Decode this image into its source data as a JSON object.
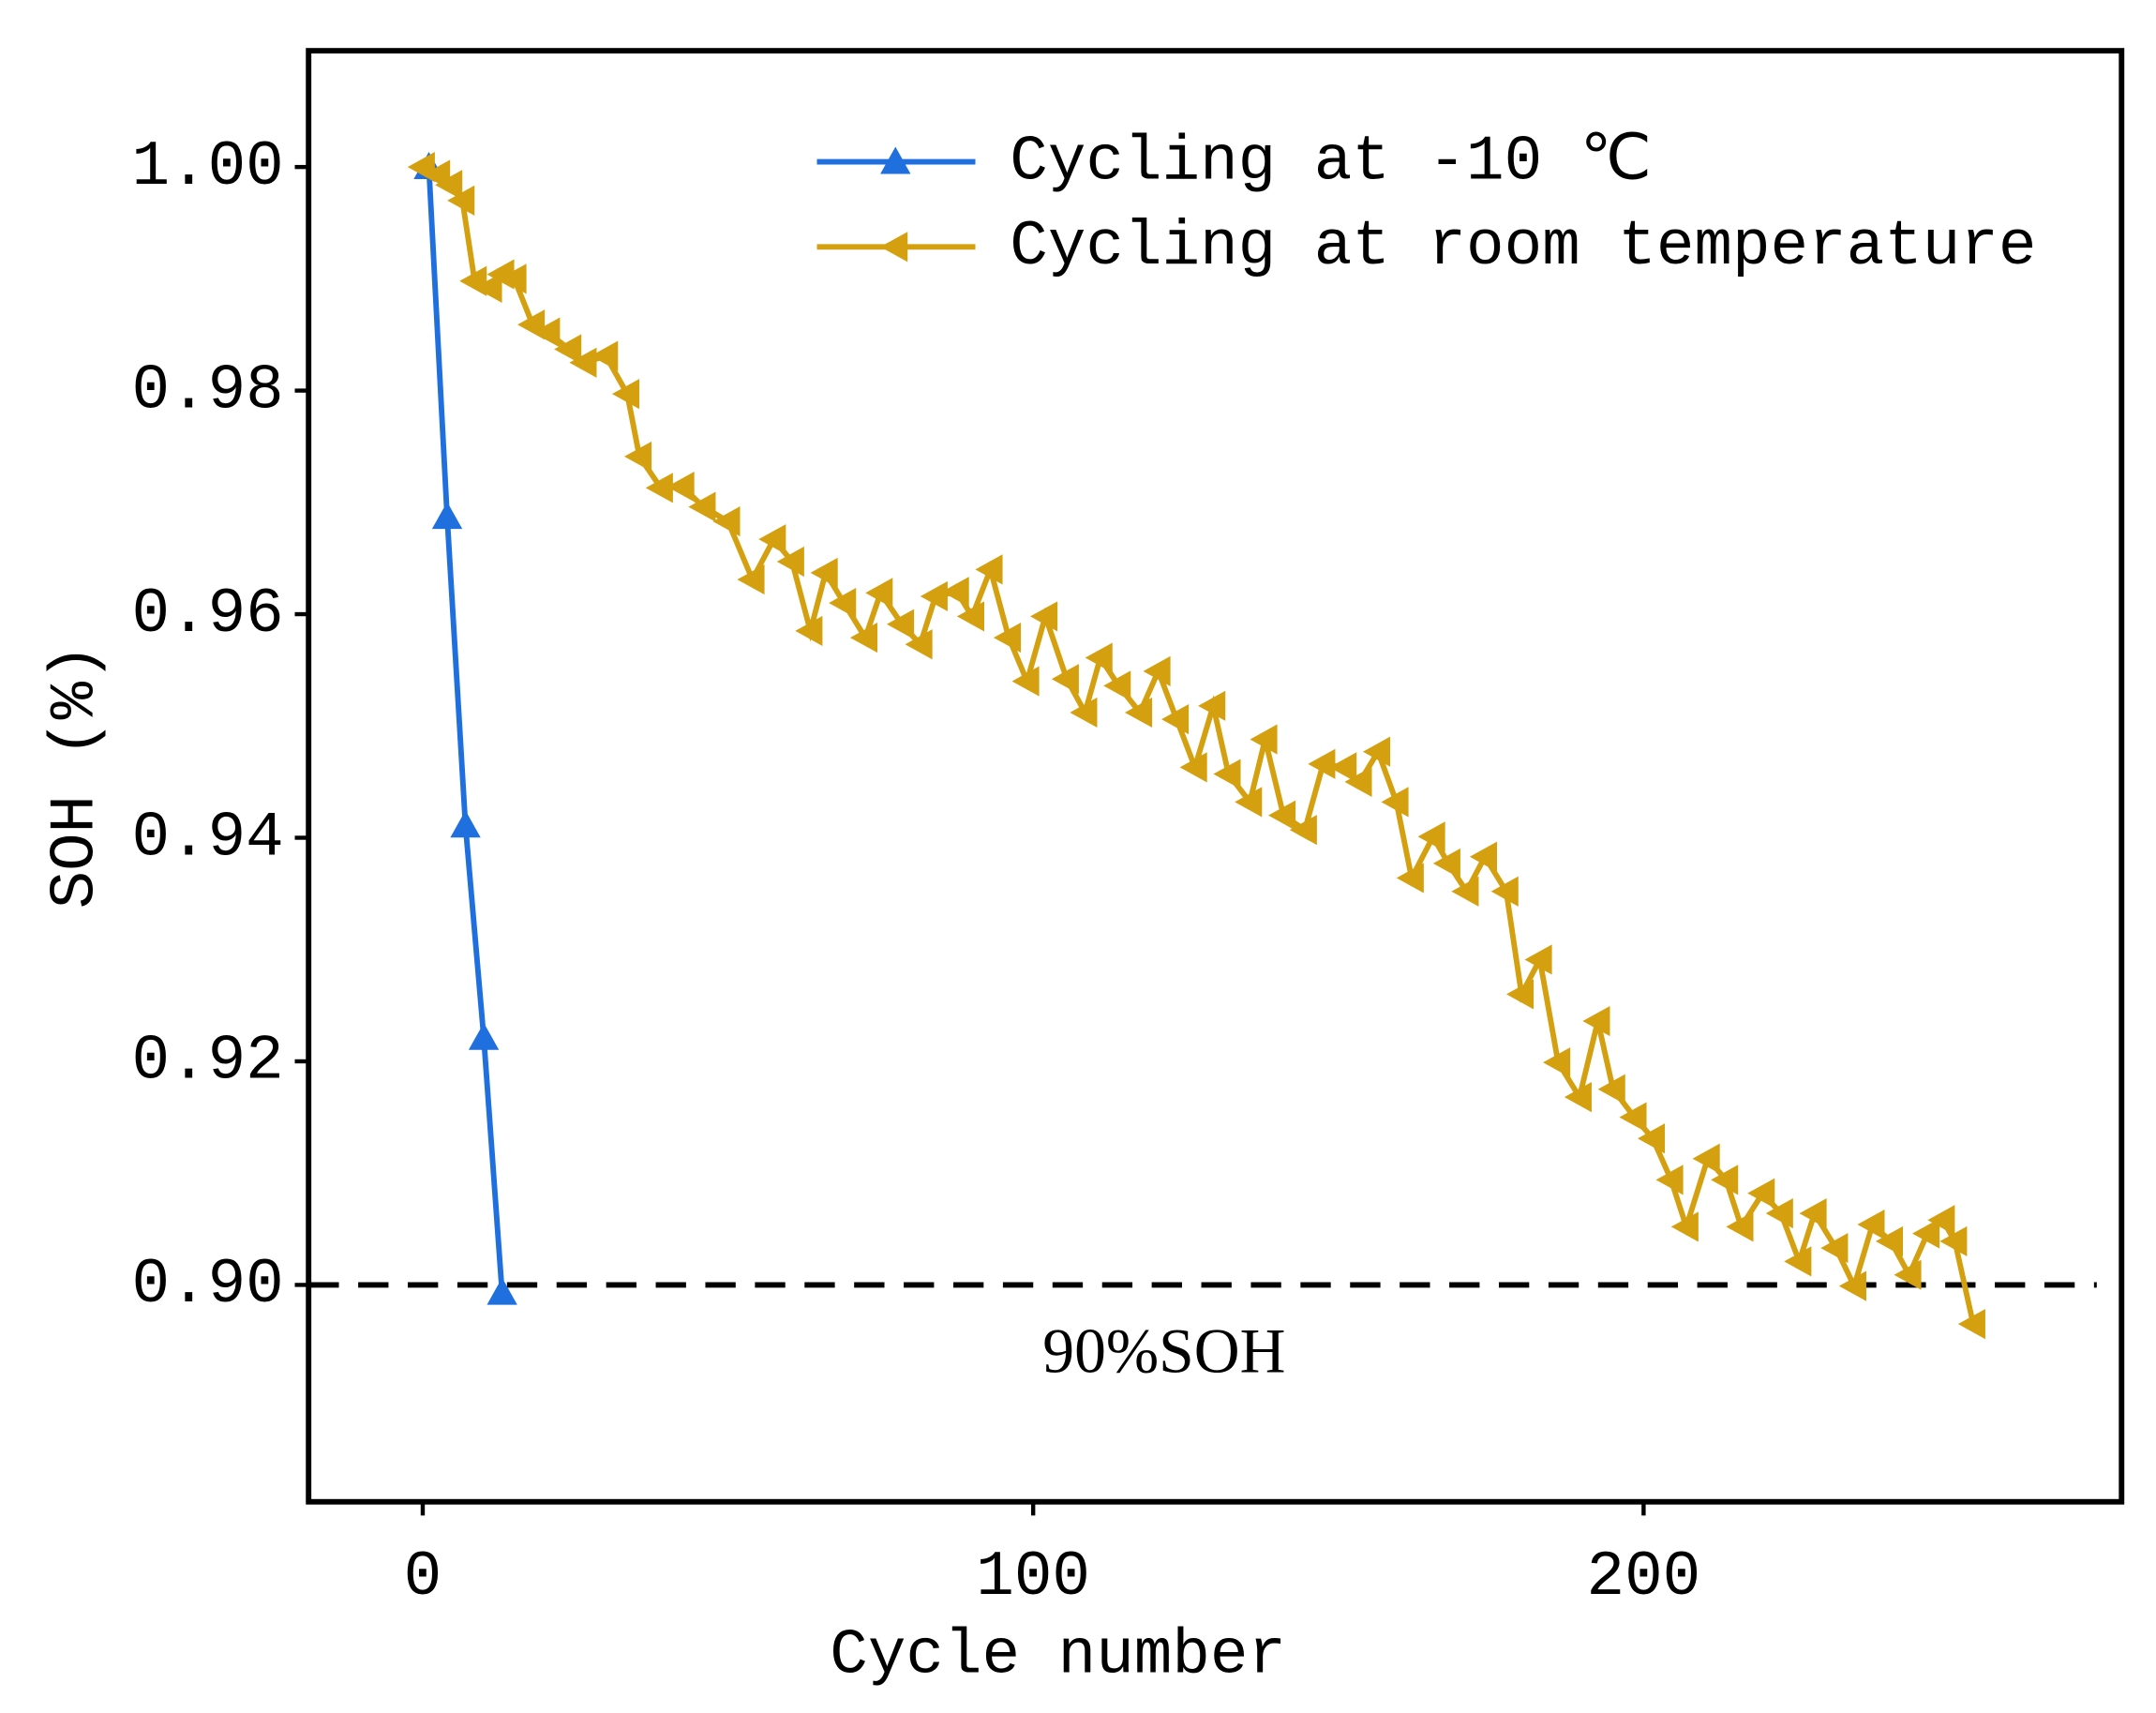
{
  "chart_data": {
    "type": "line",
    "xlabel": "Cycle number",
    "ylabel": "SOH (%)",
    "xlim": [
      -18.7,
      278.3
    ],
    "ylim": [
      0.8806,
      1.0104
    ],
    "xticks": [
      0,
      100,
      200
    ],
    "yticks": [
      {
        "value": 1,
        "label": "1.00"
      },
      0.98,
      0.96,
      0.94,
      0.92,
      {
        "value": 0.9,
        "label": "0.90"
      }
    ],
    "legend": "upper right",
    "reference_line": 0.9,
    "annotation": "90%SOH",
    "series": [
      {
        "name": "Cycling at -10 ℃",
        "color": "#1f6fde",
        "marker": "triangle-up",
        "x": [
          1,
          4,
          7,
          10,
          13
        ],
        "values": [
          1.0,
          0.9687,
          0.9411,
          0.9221,
          0.8993
        ]
      },
      {
        "name": "Cycling at room temperature",
        "color": "#d4a00f",
        "marker": "triangle-left",
        "x": [
          0,
          2.5,
          4.5,
          6.5,
          8.5,
          11,
          13,
          15,
          18,
          20.5,
          24,
          26.5,
          30,
          33.5,
          35.5,
          39,
          42.5,
          46,
          50,
          54,
          57.5,
          60.5,
          63.5,
          66,
          69,
          72.5,
          75,
          78.5,
          81.5,
          84,
          87.5,
          90,
          93,
          96,
          99,
          102,
          105.5,
          108.5,
          111,
          114,
          117.5,
          120.5,
          123.5,
          126.5,
          129.5,
          132,
          135.5,
          138,
          141,
          144.5,
          147.5,
          151,
          153.5,
          156.5,
          159.5,
          162,
          165.5,
          168,
          171,
          174,
          177.5,
          180,
          183,
          186,
          189.5,
          192.5,
          195,
          198.5,
          201.5,
          204.5,
          207,
          210.5,
          213.5,
          216,
          219.5,
          222.5,
          225.5,
          228,
          231.5,
          234.5,
          237.5,
          240.5,
          243.5,
          246.5,
          249,
          251,
          254
        ],
        "values": [
          1.0,
          0.9993,
          0.9984,
          0.997,
          0.9898,
          0.9892,
          0.9904,
          0.99,
          0.9859,
          0.9852,
          0.9837,
          0.9825,
          0.9831,
          0.9797,
          0.9741,
          0.9713,
          0.9714,
          0.9696,
          0.9683,
          0.9631,
          0.9667,
          0.9647,
          0.9585,
          0.9637,
          0.961,
          0.9579,
          0.9619,
          0.9591,
          0.9573,
          0.9616,
          0.962,
          0.9598,
          0.964,
          0.9579,
          0.954,
          0.9598,
          0.9542,
          0.9512,
          0.9561,
          0.9536,
          0.9512,
          0.9549,
          0.9506,
          0.9463,
          0.9518,
          0.9457,
          0.9432,
          0.9488,
          0.942,
          0.9407,
          0.9466,
          0.9463,
          0.945,
          0.9477,
          0.9432,
          0.9364,
          0.9401,
          0.9377,
          0.9352,
          0.9383,
          0.9352,
          0.926,
          0.9291,
          0.9199,
          0.9168,
          0.9236,
          0.9175,
          0.915,
          0.9131,
          0.9094,
          0.9052,
          0.9113,
          0.9094,
          0.9052,
          0.9082,
          0.9064,
          0.9021,
          0.9064,
          0.9033,
          0.8999,
          0.9054,
          0.9039,
          0.9009,
          0.9046,
          0.9058,
          0.9039,
          0.8965
        ]
      }
    ]
  }
}
